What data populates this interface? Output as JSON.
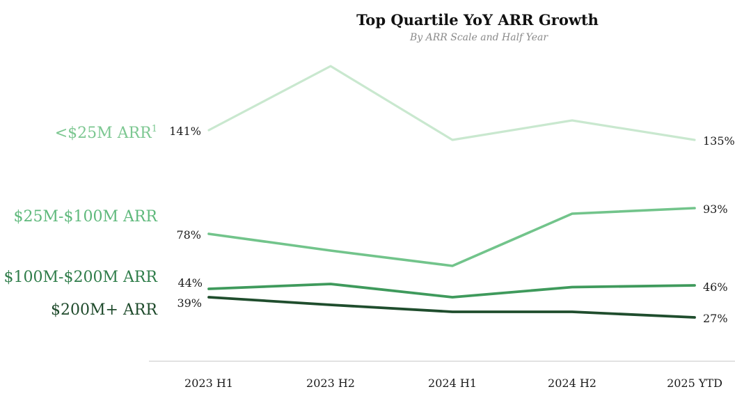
{
  "chart_data": {
    "type": "line",
    "title": "Top Quartile YoY ARR Growth",
    "subtitle": "By ARR Scale and Half Year",
    "categories": [
      "2023 H1",
      "2023 H2",
      "2024 H1",
      "2024 H2",
      "2025 YTD"
    ],
    "series": [
      {
        "name": "<$25M ARR",
        "footnote": "1",
        "color": "#c9e8cf",
        "labelColor": "#7cc791",
        "values": [
          141,
          180,
          135,
          147,
          135
        ],
        "endLabels": [
          "141%",
          "135%"
        ]
      },
      {
        "name": "$25M-$100M ARR",
        "color": "#72c48b",
        "labelColor": "#5fb97c",
        "values": [
          78,
          67,
          57,
          88,
          93
        ],
        "endLabels": [
          "78%",
          "93%"
        ]
      },
      {
        "name": "$100M-$200M ARR",
        "color": "#3f9a5c",
        "labelColor": "#2f7d4a",
        "values": [
          44,
          47,
          39,
          45,
          46
        ],
        "endLabels": [
          "44%",
          "46%"
        ]
      },
      {
        "name": "$200M+ ARR",
        "color": "#1f4d2d",
        "labelColor": "#1e4a2b",
        "values": [
          39,
          34,
          30,
          30,
          27
        ],
        "endLabels": [
          "39%",
          "27%"
        ]
      }
    ],
    "grid": false,
    "legend": "left"
  }
}
